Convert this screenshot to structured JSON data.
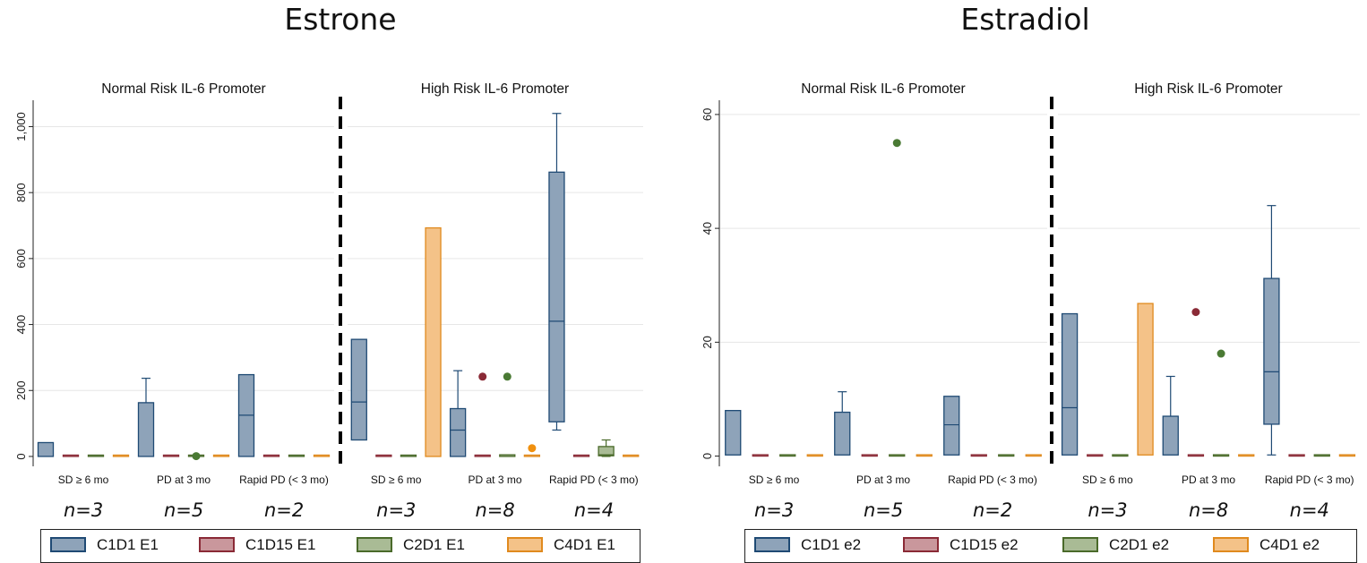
{
  "chart_data": [
    {
      "type": "box",
      "title": "Estrone",
      "panels": [
        {
          "title": "Normal Risk IL-6 Promoter",
          "categories": [
            "SD ≥ 6 mo",
            "PD at 3 mo",
            "Rapid PD (< 3 mo)"
          ],
          "n_labels": [
            "n=3",
            "n=5",
            "n=2"
          ],
          "boxes": [
            [
              {
                "series": "C1D1 E1",
                "q1": 0,
                "median": 0,
                "q3": 42,
                "whisker_low": 0,
                "whisker_high": 42
              },
              {
                "series": "C1D15 E1",
                "q1": 0,
                "median": 0,
                "q3": 0
              },
              {
                "series": "C2D1 E1",
                "q1": 0,
                "median": 0,
                "q3": 0
              },
              {
                "series": "C4D1 E1",
                "q1": 0,
                "median": 0,
                "q3": 2
              }
            ],
            [
              {
                "series": "C1D1 E1",
                "q1": 0,
                "median": 0,
                "q3": 163,
                "whisker_low": 0,
                "whisker_high": 237
              },
              {
                "series": "C1D15 E1",
                "q1": 0,
                "median": 0,
                "q3": 0
              },
              {
                "series": "C2D1 E1",
                "q1": 0,
                "median": 0,
                "q3": 0,
                "outliers": [
                  1
                ]
              },
              {
                "series": "C4D1 E1",
                "q1": 0,
                "median": 0,
                "q3": 0
              }
            ],
            [
              {
                "series": "C1D1 E1",
                "q1": 0,
                "median": 125,
                "q3": 248,
                "whisker_low": 0,
                "whisker_high": 248
              },
              {
                "series": "C1D15 E1",
                "q1": 0,
                "median": 0,
                "q3": 0
              },
              {
                "series": "C2D1 E1",
                "q1": 0,
                "median": 0,
                "q3": 0
              },
              {
                "series": "C4D1 E1",
                "q1": 0,
                "median": 0,
                "q3": 0
              }
            ]
          ]
        },
        {
          "title": "High Risk IL-6 Promoter",
          "categories": [
            "SD ≥ 6 mo",
            "PD at 3 mo",
            "Rapid PD (< 3 mo)"
          ],
          "n_labels": [
            "n=3",
            "n=8",
            "n=4"
          ],
          "boxes": [
            [
              {
                "series": "C1D1 E1",
                "q1": 50,
                "median": 165,
                "q3": 355,
                "whisker_low": 50,
                "whisker_high": 355
              },
              {
                "series": "C1D15 E1",
                "q1": 0,
                "median": 0,
                "q3": 0
              },
              {
                "series": "C2D1 E1",
                "q1": 0,
                "median": 0,
                "q3": 0
              },
              {
                "series": "C4D1 E1",
                "q1": 0,
                "median": 0,
                "q3": 693,
                "whisker_low": 0,
                "whisker_high": 693
              }
            ],
            [
              {
                "series": "C1D1 E1",
                "q1": 0,
                "median": 80,
                "q3": 145,
                "whisker_low": 0,
                "whisker_high": 260
              },
              {
                "series": "C1D15 E1",
                "q1": 0,
                "median": 0,
                "q3": 0,
                "outliers": [
                  242
                ]
              },
              {
                "series": "C2D1 E1",
                "q1": 0,
                "median": 0,
                "q3": 5,
                "outliers": [
                  242
                ]
              },
              {
                "series": "C4D1 E1",
                "q1": 0,
                "median": 0,
                "q3": 4,
                "outliers": [
                  25
                ]
              }
            ],
            [
              {
                "series": "C1D1 E1",
                "q1": 105,
                "median": 410,
                "q3": 862,
                "whisker_low": 80,
                "whisker_high": 1040
              },
              {
                "series": "C1D15 E1",
                "q1": 0,
                "median": 0,
                "q3": 0
              },
              {
                "series": "C2D1 E1",
                "q1": 2,
                "median": 5,
                "q3": 30,
                "whisker_low": 0,
                "whisker_high": 50
              },
              {
                "series": "C4D1 E1",
                "q1": 0,
                "median": 0,
                "q3": 0
              }
            ]
          ]
        }
      ],
      "yticks": [
        0,
        200,
        400,
        600,
        800,
        1000
      ],
      "ytick_labels": [
        "0",
        "200",
        "400",
        "600",
        "800",
        "1,000"
      ],
      "ylim": [
        -30,
        1080
      ],
      "grid": true,
      "legend": [
        "C1D1 E1",
        "C1D15 E1",
        "C2D1 E1",
        "C4D1 E1"
      ],
      "legend_position": "bottom"
    },
    {
      "type": "box",
      "title": "Estradiol",
      "panels": [
        {
          "title": "Normal Risk IL-6 Promoter",
          "categories": [
            "SD ≥ 6 mo",
            "PD at 3 mo",
            "Rapid PD (< 3 mo)"
          ],
          "n_labels": [
            "n=3",
            "n=5",
            "n=2"
          ],
          "boxes": [
            [
              {
                "series": "C1D1 e2",
                "q1": 0.2,
                "median": 0.2,
                "q3": 8.0,
                "whisker_low": 0.2,
                "whisker_high": 8.0
              },
              {
                "series": "C1D15 e2",
                "q1": 0,
                "median": 0,
                "q3": 0
              },
              {
                "series": "C2D1 e2",
                "q1": 0,
                "median": 0,
                "q3": 0
              },
              {
                "series": "C4D1 e2",
                "q1": 0,
                "median": 0,
                "q3": 0
              }
            ],
            [
              {
                "series": "C1D1 e2",
                "q1": 0.2,
                "median": 0.2,
                "q3": 7.7,
                "whisker_low": 0.2,
                "whisker_high": 11.3
              },
              {
                "series": "C1D15 e2",
                "q1": 0,
                "median": 0,
                "q3": 0
              },
              {
                "series": "C2D1 e2",
                "q1": 0,
                "median": 0,
                "q3": 0,
                "outliers": [
                  55
                ]
              },
              {
                "series": "C4D1 e2",
                "q1": 0,
                "median": 0,
                "q3": 0
              }
            ],
            [
              {
                "series": "C1D1 e2",
                "q1": 0.2,
                "median": 5.5,
                "q3": 10.5,
                "whisker_low": 0.2,
                "whisker_high": 10.5
              },
              {
                "series": "C1D15 e2",
                "q1": 0,
                "median": 0,
                "q3": 0
              },
              {
                "series": "C2D1 e2",
                "q1": 0,
                "median": 0,
                "q3": 0
              },
              {
                "series": "C4D1 e2",
                "q1": 0,
                "median": 0,
                "q3": 0
              }
            ]
          ]
        },
        {
          "title": "High Risk IL-6 Promoter",
          "categories": [
            "SD ≥ 6 mo",
            "PD at 3 mo",
            "Rapid PD (< 3 mo)"
          ],
          "n_labels": [
            "n=3",
            "n=8",
            "n=4"
          ],
          "boxes": [
            [
              {
                "series": "C1D1 e2",
                "q1": 0.2,
                "median": 8.5,
                "q3": 25.0,
                "whisker_low": 0.2,
                "whisker_high": 25.0
              },
              {
                "series": "C1D15 e2",
                "q1": 0,
                "median": 0,
                "q3": 0
              },
              {
                "series": "C2D1 e2",
                "q1": 0,
                "median": 0,
                "q3": 0
              },
              {
                "series": "C4D1 e2",
                "q1": 0.2,
                "median": 0.2,
                "q3": 26.8,
                "whisker_low": 0.2,
                "whisker_high": 26.8
              }
            ],
            [
              {
                "series": "C1D1 e2",
                "q1": 0.2,
                "median": 0.2,
                "q3": 7.0,
                "whisker_low": 0.2,
                "whisker_high": 14.0
              },
              {
                "series": "C1D15 e2",
                "q1": 0,
                "median": 0,
                "q3": 0,
                "outliers": [
                  25.3
                ]
              },
              {
                "series": "C2D1 e2",
                "q1": 0,
                "median": 0,
                "q3": 0,
                "outliers": [
                  18.0
                ]
              },
              {
                "series": "C4D1 e2",
                "q1": 0,
                "median": 0,
                "q3": 0
              }
            ],
            [
              {
                "series": "C1D1 e2",
                "q1": 5.6,
                "median": 14.8,
                "q3": 31.2,
                "whisker_low": 0.2,
                "whisker_high": 44.0
              },
              {
                "series": "C1D15 e2",
                "q1": 0,
                "median": 0,
                "q3": 0
              },
              {
                "series": "C2D1 e2",
                "q1": 0,
                "median": 0,
                "q3": 0
              },
              {
                "series": "C4D1 e2",
                "q1": 0,
                "median": 0,
                "q3": 0
              }
            ]
          ]
        }
      ],
      "yticks": [
        0,
        20,
        40,
        60
      ],
      "ytick_labels": [
        "0",
        "20",
        "40",
        "60"
      ],
      "ylim": [
        -1.8,
        62.5
      ],
      "grid": true,
      "legend": [
        "C1D1 e2",
        "C1D15 e2",
        "C2D1 e2",
        "C4D1 e2"
      ],
      "legend_position": "bottom"
    }
  ],
  "colors": {
    "series_fill": [
      "#8ea3b9",
      "#c9979c",
      "#a9bb95",
      "#f4c288"
    ],
    "series_stroke": [
      "#1f4a74",
      "#8a2a36",
      "#4a6a2a",
      "#e08a1e"
    ],
    "outlier_fill": [
      "#1f4a74",
      "#8a2a36",
      "#4a7a34",
      "#f0900f"
    ]
  }
}
